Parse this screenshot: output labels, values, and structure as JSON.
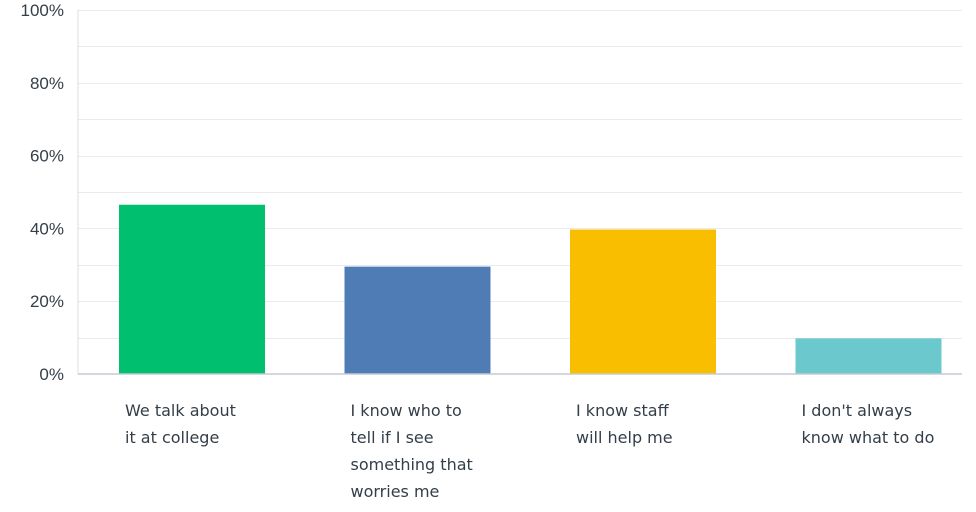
{
  "chart_data": {
    "type": "bar",
    "categories": [
      [
        "We talk about",
        "it at college"
      ],
      [
        "I know who to",
        "tell if I see",
        "something that",
        "worries me"
      ],
      [
        "I know staff",
        "will help me"
      ],
      [
        "I don't always",
        "know what to do"
      ]
    ],
    "values": [
      46.5,
      29.5,
      39.7,
      9.8
    ],
    "colors": [
      "#00bf6f",
      "#507cb6",
      "#f9be00",
      "#6bc8cd"
    ],
    "ylim": [
      0,
      100
    ],
    "yticks": [
      "0%",
      "20%",
      "40%",
      "60%",
      "80%",
      "100%"
    ],
    "ytick_values": [
      0,
      20,
      40,
      60,
      80,
      100
    ],
    "grid": true,
    "title": "",
    "xlabel": "",
    "ylabel": ""
  }
}
